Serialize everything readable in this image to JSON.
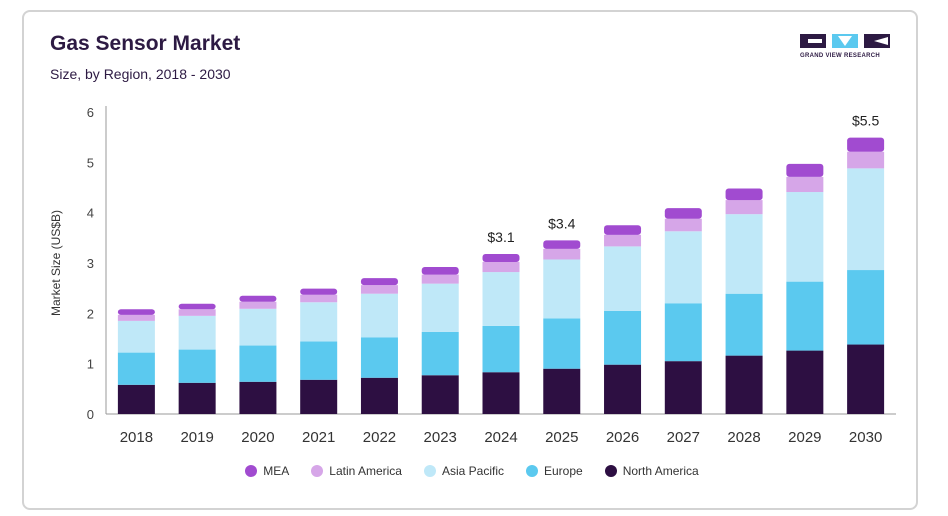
{
  "header": {
    "title": "Gas Sensor Market",
    "subtitle": "Size, by Region, 2018 - 2030"
  },
  "brand": {
    "logo_text": "GRAND VIEW RESEARCH"
  },
  "chart_data": {
    "type": "bar",
    "stacked": true,
    "title": "Gas Sensor Market",
    "subtitle": "Size, by Region, 2018 - 2030",
    "xlabel": "",
    "ylabel": "Market Size (US$B)",
    "ylim": [
      0,
      6
    ],
    "yticks": [
      0,
      1,
      2,
      3,
      4,
      5,
      6
    ],
    "grid": false,
    "legend_position": "bottom",
    "categories": [
      "2018",
      "2019",
      "2020",
      "2021",
      "2022",
      "2023",
      "2024",
      "2025",
      "2026",
      "2027",
      "2028",
      "2029",
      "2030"
    ],
    "series": [
      {
        "name": "North America",
        "color": "#2d0f42",
        "values": [
          0.58,
          0.62,
          0.64,
          0.68,
          0.72,
          0.77,
          0.83,
          0.9,
          0.98,
          1.05,
          1.16,
          1.26,
          1.38
        ]
      },
      {
        "name": "Europe",
        "color": "#5bc9ef",
        "values": [
          0.64,
          0.66,
          0.72,
          0.76,
          0.8,
          0.86,
          0.92,
          1.0,
          1.07,
          1.15,
          1.23,
          1.37,
          1.48
        ]
      },
      {
        "name": "Asia Pacific",
        "color": "#bfe8f8",
        "values": [
          0.63,
          0.67,
          0.73,
          0.78,
          0.87,
          0.96,
          1.07,
          1.17,
          1.28,
          1.43,
          1.58,
          1.78,
          2.02
        ]
      },
      {
        "name": "Latin America",
        "color": "#d6a6e8",
        "values": [
          0.12,
          0.13,
          0.14,
          0.15,
          0.17,
          0.18,
          0.2,
          0.21,
          0.23,
          0.25,
          0.28,
          0.3,
          0.33
        ]
      },
      {
        "name": "MEA",
        "color": "#a14bd0",
        "values": [
          0.11,
          0.11,
          0.12,
          0.12,
          0.14,
          0.15,
          0.16,
          0.17,
          0.19,
          0.21,
          0.23,
          0.26,
          0.28
        ]
      }
    ],
    "annotations": [
      {
        "category": "2024",
        "label": "$3.1"
      },
      {
        "category": "2025",
        "label": "$3.4"
      },
      {
        "category": "2030",
        "label": "$5.5"
      }
    ]
  }
}
